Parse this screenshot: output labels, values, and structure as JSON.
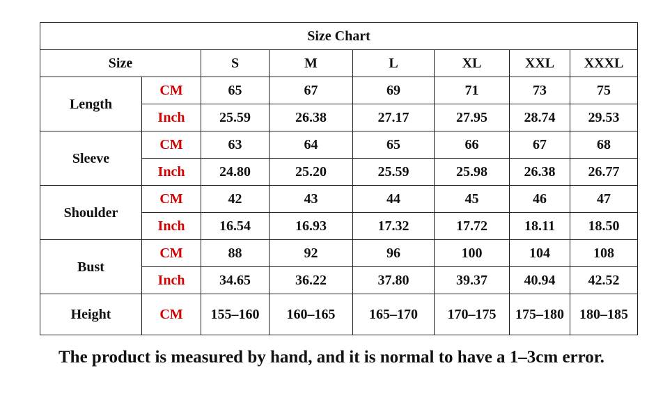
{
  "table": {
    "title": "Size Chart",
    "columns": [
      "Size",
      "S",
      "M",
      "L",
      "XL",
      "XXL",
      "XXXL"
    ],
    "rows": [
      {
        "label": "Length",
        "units": [
          {
            "unit": "CM",
            "values": [
              "65",
              "67",
              "69",
              "71",
              "73",
              "75"
            ]
          },
          {
            "unit": "Inch",
            "values": [
              "25.59",
              "26.38",
              "27.17",
              "27.95",
              "28.74",
              "29.53"
            ]
          }
        ]
      },
      {
        "label": "Sleeve",
        "units": [
          {
            "unit": "CM",
            "values": [
              "63",
              "64",
              "65",
              "66",
              "67",
              "68"
            ]
          },
          {
            "unit": "Inch",
            "values": [
              "24.80",
              "25.20",
              "25.59",
              "25.98",
              "26.38",
              "26.77"
            ]
          }
        ]
      },
      {
        "label": "Shoulder",
        "units": [
          {
            "unit": "CM",
            "values": [
              "42",
              "43",
              "44",
              "45",
              "46",
              "47"
            ]
          },
          {
            "unit": "Inch",
            "values": [
              "16.54",
              "16.93",
              "17.32",
              "17.72",
              "18.11",
              "18.50"
            ]
          }
        ]
      },
      {
        "label": "Bust",
        "units": [
          {
            "unit": "CM",
            "values": [
              "88",
              "92",
              "96",
              "100",
              "104",
              "108"
            ]
          },
          {
            "unit": "Inch",
            "values": [
              "34.65",
              "36.22",
              "37.80",
              "39.37",
              "40.94",
              "42.52"
            ]
          }
        ]
      },
      {
        "label": "Height",
        "units": [
          {
            "unit": "CM",
            "values": [
              "155–160",
              "160–165",
              "165–170",
              "170–175",
              "175–180",
              "180–185"
            ]
          }
        ]
      }
    ]
  },
  "note": "The product is measured by hand, and it is normal to have a 1–3cm error."
}
